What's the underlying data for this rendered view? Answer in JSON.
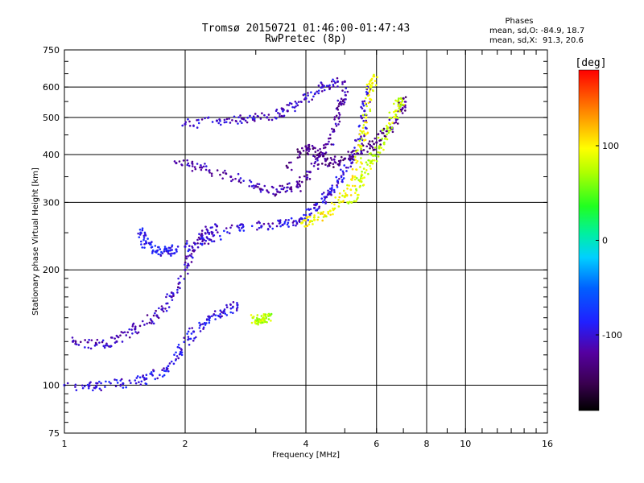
{
  "chart_data": {
    "type": "scatter",
    "title": "Tromsø 20150721 01:46:00-01:47:43",
    "subtitle": "RwPretec (8p)",
    "xlabel": "Frequency [MHz]",
    "ylabel": "Stationary phase Virtual Height [km]",
    "x_scale": "log",
    "y_scale": "log",
    "xlim": [
      1,
      16
    ],
    "ylim": [
      75,
      750
    ],
    "x_ticks": [
      1,
      2,
      4,
      6,
      8,
      10,
      16
    ],
    "y_ticks": [
      75,
      100,
      200,
      300,
      400,
      500,
      600,
      750
    ],
    "grid": true,
    "phases_box": {
      "title": "Phases",
      "line_o": "mean, sd,O: -84.9, 18.7",
      "line_x": "mean, sd,X:  91.3, 20.6"
    },
    "colorbar": {
      "label": "[deg]",
      "range": [
        -180,
        180
      ],
      "ticks": [
        100,
        0,
        -100
      ],
      "colormap": "rainbow (black-purple-blue-cyan-green-yellow-red)"
    },
    "series": [
      {
        "name": "O",
        "mean_phase_deg": -84.9,
        "sd_phase_deg": 18.7,
        "traces": [
          {
            "phase_deg": -95,
            "points": [
              [
                1.0,
                100
              ],
              [
                1.2,
                99
              ],
              [
                1.4,
                101
              ],
              [
                1.6,
                104
              ],
              [
                1.8,
                110
              ],
              [
                1.95,
                122
              ],
              [
                2.1,
                138
              ],
              [
                2.3,
                150
              ],
              [
                2.5,
                156
              ],
              [
                2.7,
                162
              ]
            ]
          },
          {
            "phase_deg": -110,
            "points": [
              [
                1.05,
                130
              ],
              [
                1.2,
                128
              ],
              [
                1.35,
                130
              ],
              [
                1.5,
                140
              ],
              [
                1.7,
                152
              ],
              [
                1.85,
                170
              ],
              [
                2.0,
                200
              ],
              [
                2.1,
                225
              ],
              [
                2.2,
                245
              ],
              [
                2.4,
                260
              ]
            ]
          },
          {
            "phase_deg": -100,
            "points": [
              [
                2.0,
                230
              ],
              [
                2.3,
                240
              ],
              [
                2.7,
                260
              ],
              [
                3.1,
                260
              ],
              [
                3.5,
                262
              ],
              [
                3.9,
                272
              ],
              [
                4.2,
                290
              ],
              [
                4.5,
                310
              ],
              [
                4.8,
                340
              ],
              [
                5.2,
                380
              ],
              [
                5.5,
                440
              ],
              [
                5.6,
                520
              ],
              [
                5.7,
                600
              ]
            ]
          },
          {
            "phase_deg": -115,
            "points": [
              [
                1.9,
                380
              ],
              [
                2.2,
                370
              ],
              [
                2.6,
                350
              ],
              [
                3.0,
                330
              ],
              [
                3.4,
                320
              ],
              [
                3.8,
                330
              ],
              [
                4.1,
                360
              ],
              [
                4.4,
                400
              ],
              [
                4.7,
                460
              ],
              [
                4.9,
                540
              ],
              [
                5.0,
                620
              ]
            ]
          },
          {
            "phase_deg": -105,
            "points": [
              [
                2.0,
                480
              ],
              [
                2.4,
                490
              ],
              [
                2.8,
                495
              ],
              [
                3.2,
                500
              ],
              [
                3.6,
                520
              ],
              [
                4.0,
                560
              ],
              [
                4.4,
                600
              ],
              [
                4.8,
                620
              ]
            ]
          },
          {
            "phase_deg": -130,
            "points": [
              [
                3.6,
                370
              ],
              [
                4.0,
                420
              ],
              [
                4.3,
                400
              ],
              [
                4.6,
                380
              ],
              [
                5.0,
                390
              ],
              [
                5.5,
                410
              ],
              [
                6.0,
                430
              ],
              [
                6.5,
                470
              ],
              [
                6.9,
                520
              ],
              [
                7.0,
                560
              ]
            ]
          },
          {
            "phase_deg": -90,
            "points": [
              [
                1.55,
                250
              ],
              [
                1.6,
                235
              ],
              [
                1.7,
                224
              ],
              [
                1.8,
                224
              ],
              [
                1.9,
                226
              ]
            ]
          }
        ]
      },
      {
        "name": "X",
        "mean_phase_deg": 91.3,
        "sd_phase_deg": 20.6,
        "traces": [
          {
            "phase_deg": 95,
            "points": [
              [
                3.9,
                265
              ],
              [
                4.2,
                270
              ],
              [
                4.6,
                285
              ],
              [
                5.0,
                310
              ],
              [
                5.3,
                350
              ],
              [
                5.5,
                420
              ],
              [
                5.65,
                500
              ],
              [
                5.8,
                600
              ],
              [
                5.9,
                640
              ]
            ]
          },
          {
            "phase_deg": 80,
            "points": [
              [
                5.2,
                300
              ],
              [
                5.5,
                340
              ],
              [
                5.8,
                380
              ],
              [
                6.1,
                420
              ],
              [
                6.4,
                470
              ],
              [
                6.7,
                520
              ],
              [
                6.9,
                560
              ]
            ]
          },
          {
            "phase_deg": 75,
            "points": [
              [
                2.95,
                150
              ],
              [
                3.05,
                146
              ],
              [
                3.15,
                148
              ],
              [
                3.25,
                152
              ]
            ]
          }
        ]
      }
    ]
  }
}
